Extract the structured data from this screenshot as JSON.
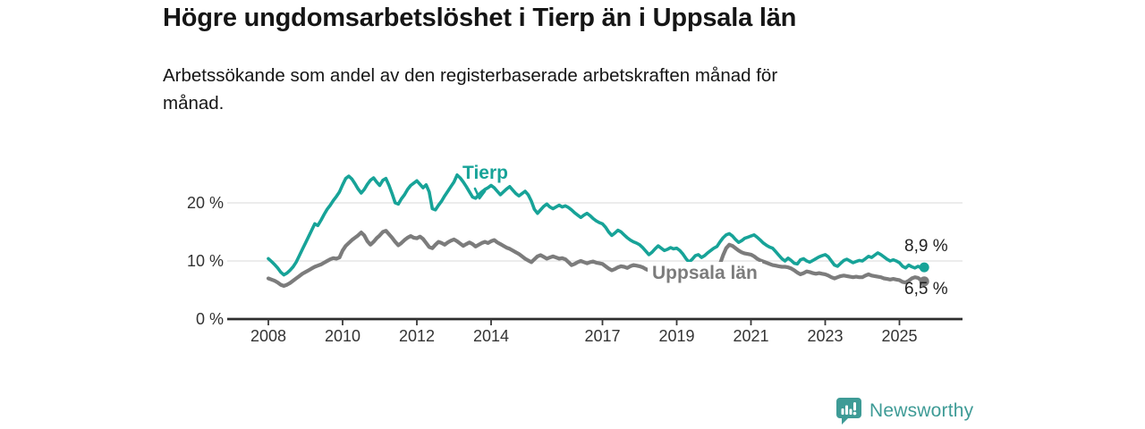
{
  "header": {
    "title": "Högre ungdomsarbetslöshet i Tierp än i Uppsala län",
    "subtitle": "Arbetssökande som andel av den registerbaserade arbetskraften månad för\nmånad."
  },
  "footer": {
    "brand": "Newsworthy",
    "brand_color": "#3e9b96",
    "logo_icon": "bar-chart-speech-bubble"
  },
  "chart_data": {
    "type": "line",
    "title": "Högre ungdomsarbetslöshet i Tierp än i Uppsala län",
    "subtitle": "Arbetssökande som andel av den registerbaserade arbetskraften månad för månad.",
    "unit": "%",
    "frequency": "monthly",
    "x_start": 2008.0,
    "x_step_years": 0.0833,
    "xlim": [
      2006.9,
      2026.7
    ],
    "ylim": [
      0,
      28
    ],
    "grid": "horizontal",
    "x_ticks": [
      2008,
      2010,
      2012,
      2014,
      2017,
      2019,
      2021,
      2023,
      2025
    ],
    "x_tick_labels": [
      "2008",
      "2010",
      "2012",
      "2014",
      "2017",
      "2019",
      "2021",
      "2023",
      "2025"
    ],
    "y_ticks": [
      0,
      10,
      20
    ],
    "y_tick_labels": [
      "0 %",
      "10 %",
      "20 %"
    ],
    "series": [
      {
        "name": "Tierp",
        "color": "#17a398",
        "end_label": "8,9 %",
        "end_value": 8.9,
        "values": [
          10.4,
          9.9,
          9.4,
          8.8,
          8.1,
          7.6,
          7.9,
          8.4,
          9.0,
          9.8,
          10.9,
          12.0,
          13.1,
          14.2,
          15.3,
          16.4,
          16.1,
          17.0,
          18.0,
          18.9,
          19.6,
          20.4,
          21.1,
          21.9,
          23.1,
          24.2,
          24.6,
          24.1,
          23.3,
          22.4,
          21.7,
          22.3,
          23.2,
          23.9,
          24.3,
          23.6,
          23.0,
          23.9,
          24.2,
          23.0,
          21.6,
          20.0,
          19.8,
          20.7,
          21.4,
          22.3,
          23.0,
          23.4,
          23.8,
          23.2,
          22.6,
          23.1,
          21.9,
          19.0,
          18.8,
          19.6,
          20.3,
          21.2,
          22.0,
          22.8,
          23.6,
          24.8,
          24.3,
          23.6,
          22.8,
          21.9,
          21.0,
          20.8,
          21.4,
          21.9,
          22.3,
          22.6,
          23.0,
          22.6,
          22.0,
          21.4,
          21.9,
          22.4,
          22.8,
          22.2,
          21.6,
          21.2,
          21.6,
          22.0,
          21.4,
          20.3,
          18.9,
          18.2,
          18.8,
          19.4,
          19.8,
          19.3,
          19.0,
          19.3,
          19.6,
          19.3,
          19.5,
          19.2,
          18.8,
          18.3,
          17.9,
          17.5,
          17.9,
          18.2,
          17.8,
          17.3,
          16.9,
          16.6,
          16.4,
          15.8,
          15.0,
          14.4,
          14.8,
          15.3,
          15.0,
          14.5,
          14.0,
          13.6,
          13.3,
          13.1,
          12.8,
          12.3,
          11.7,
          11.1,
          11.5,
          12.1,
          12.6,
          12.2,
          11.8,
          12.0,
          12.3,
          12.1,
          12.2,
          11.8,
          11.2,
          10.4,
          9.8,
          10.3,
          10.9,
          11.1,
          10.6,
          10.9,
          11.4,
          11.8,
          12.2,
          12.5,
          13.3,
          14.0,
          14.5,
          14.7,
          14.3,
          13.7,
          13.2,
          13.5,
          13.9,
          14.1,
          14.3,
          14.5,
          14.1,
          13.6,
          13.1,
          12.7,
          12.4,
          12.2,
          11.6,
          11.0,
          10.4,
          10.0,
          10.5,
          10.1,
          9.6,
          9.5,
          10.2,
          10.4,
          10.0,
          9.8,
          10.1,
          10.4,
          10.7,
          10.9,
          11.1,
          10.7,
          10.0,
          9.3,
          9.1,
          9.6,
          10.1,
          10.3,
          10.0,
          9.7,
          9.9,
          10.1,
          10.0,
          10.4,
          10.8,
          10.6,
          11.0,
          11.4,
          11.1,
          10.7,
          10.3,
          10.0,
          10.2,
          10.0,
          9.7,
          9.1,
          8.8,
          9.3,
          9.0,
          8.8,
          9.1,
          8.8,
          8.9
        ]
      },
      {
        "name": "Uppsala län",
        "color": "#7c7c7c",
        "end_label": "6,5 %",
        "end_value": 6.5,
        "values": [
          7.0,
          6.8,
          6.6,
          6.3,
          5.9,
          5.7,
          5.9,
          6.2,
          6.6,
          7.0,
          7.4,
          7.8,
          8.1,
          8.4,
          8.7,
          9.0,
          9.2,
          9.4,
          9.7,
          10.0,
          10.3,
          10.5,
          10.4,
          10.6,
          11.8,
          12.6,
          13.1,
          13.6,
          14.0,
          14.4,
          14.9,
          14.4,
          13.4,
          12.8,
          13.3,
          13.9,
          14.4,
          15.0,
          15.2,
          14.6,
          14.0,
          13.3,
          12.7,
          13.1,
          13.6,
          14.0,
          14.3,
          14.0,
          13.9,
          14.2,
          13.8,
          13.1,
          12.4,
          12.2,
          12.8,
          13.3,
          13.1,
          12.8,
          13.2,
          13.5,
          13.7,
          13.4,
          13.0,
          12.6,
          12.9,
          13.2,
          12.9,
          12.5,
          12.8,
          13.1,
          13.3,
          13.1,
          13.4,
          13.6,
          13.2,
          12.9,
          12.6,
          12.3,
          12.1,
          11.8,
          11.5,
          11.2,
          10.8,
          10.4,
          10.1,
          9.8,
          10.3,
          10.8,
          11.0,
          10.7,
          10.4,
          10.6,
          10.8,
          10.6,
          10.4,
          10.5,
          10.3,
          9.8,
          9.3,
          9.5,
          9.8,
          10.0,
          9.8,
          9.6,
          9.8,
          9.9,
          9.7,
          9.6,
          9.5,
          9.1,
          8.7,
          8.4,
          8.6,
          8.9,
          9.1,
          9.0,
          8.8,
          9.1,
          9.3,
          9.2,
          9.1,
          8.9,
          8.6,
          8.4,
          8.6,
          8.8,
          8.7,
          8.5,
          8.4,
          8.5,
          8.6,
          8.5,
          8.4,
          8.3,
          8.1,
          8.0,
          7.9,
          8.0,
          8.2,
          8.3,
          8.2,
          8.1,
          8.2,
          8.3,
          8.4,
          8.6,
          9.5,
          11.0,
          12.2,
          12.8,
          12.6,
          12.2,
          11.8,
          11.5,
          11.3,
          11.2,
          11.1,
          10.8,
          10.4,
          10.1,
          9.9,
          9.7,
          9.5,
          9.3,
          9.2,
          9.1,
          9.0,
          9.0,
          8.9,
          8.7,
          8.4,
          8.0,
          7.7,
          7.9,
          8.2,
          8.1,
          7.9,
          7.8,
          7.9,
          7.8,
          7.7,
          7.5,
          7.2,
          7.0,
          7.2,
          7.4,
          7.5,
          7.4,
          7.3,
          7.2,
          7.3,
          7.2,
          7.2,
          7.5,
          7.7,
          7.5,
          7.4,
          7.3,
          7.2,
          7.0,
          6.9,
          6.8,
          6.9,
          6.8,
          6.7,
          6.4,
          6.3,
          6.6,
          7.0,
          7.2,
          7.1,
          6.7,
          6.5
        ]
      }
    ]
  }
}
